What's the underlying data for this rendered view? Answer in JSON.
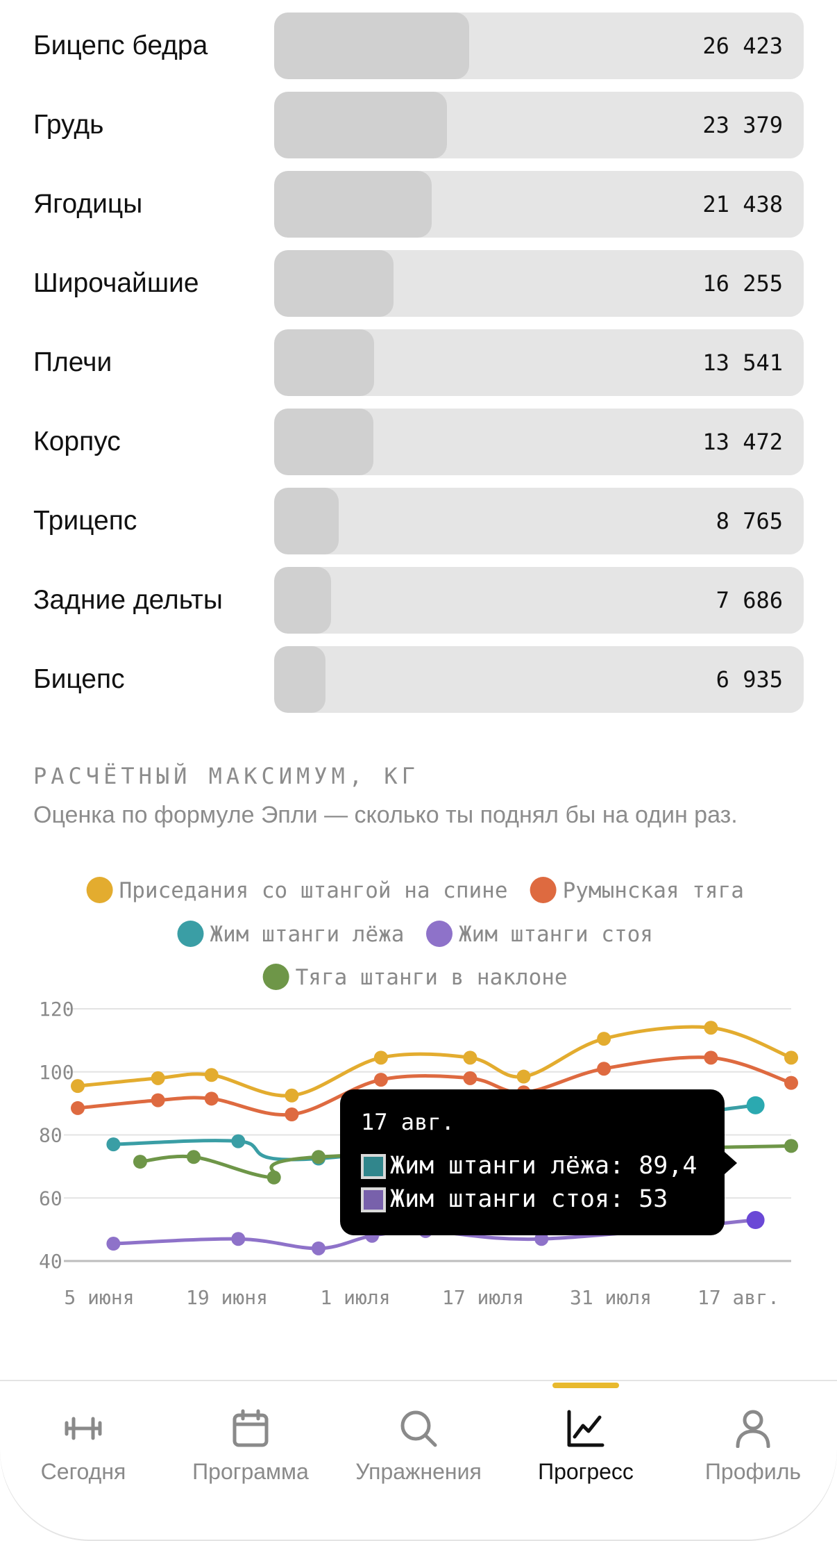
{
  "muscles": [
    {
      "name": "Бицепс бедра",
      "value": "26 423",
      "fraction": 0.368
    },
    {
      "name": "Грудь",
      "value": "23 379",
      "fraction": 0.326
    },
    {
      "name": "Ягодицы",
      "value": "21 438",
      "fraction": 0.298
    },
    {
      "name": "Широчайшие",
      "value": "16 255",
      "fraction": 0.226
    },
    {
      "name": "Плечи",
      "value": "13 541",
      "fraction": 0.189
    },
    {
      "name": "Корпус",
      "value": "13 472",
      "fraction": 0.188
    },
    {
      "name": "Трицепс",
      "value": "8 765",
      "fraction": 0.122
    },
    {
      "name": "Задние дельты",
      "value": "7 686",
      "fraction": 0.107
    },
    {
      "name": "Бицепс",
      "value": "6 935",
      "fraction": 0.097
    }
  ],
  "section": {
    "title": "РАСЧЁТНЫЙ МАКСИМУМ, КГ",
    "subtitle": "Оценка по формуле Эпли — сколько ты поднял бы на один раз."
  },
  "chart_data": {
    "type": "line",
    "ylim": [
      40,
      120
    ],
    "yticks": [
      40,
      60,
      80,
      100,
      120
    ],
    "xticks": [
      "5 июня",
      "19 июня",
      "1 июля",
      "17 июля",
      "31 июля",
      "17 авг."
    ],
    "grid": true,
    "legend_position": "top",
    "series": [
      {
        "name": "Приседания со штангой на спине",
        "color": "#e3ac2f",
        "points": [
          [
            "2024-06-05",
            95.5
          ],
          [
            "2024-06-14",
            98
          ],
          [
            "2024-06-20",
            99
          ],
          [
            "2024-06-29",
            92.5
          ],
          [
            "2024-07-09",
            104.5
          ],
          [
            "2024-07-19",
            104.5
          ],
          [
            "2024-07-25",
            98.5
          ],
          [
            "2024-08-03",
            110.5
          ],
          [
            "2024-08-15",
            114
          ],
          [
            "2024-08-24",
            104.5
          ]
        ]
      },
      {
        "name": "Румынская тяга",
        "color": "#de6a40",
        "points": [
          [
            "2024-06-05",
            88.5
          ],
          [
            "2024-06-14",
            91
          ],
          [
            "2024-06-20",
            91.5
          ],
          [
            "2024-06-29",
            86.5
          ],
          [
            "2024-07-09",
            97.5
          ],
          [
            "2024-07-19",
            98
          ],
          [
            "2024-07-25",
            93.5
          ],
          [
            "2024-08-03",
            101
          ],
          [
            "2024-08-15",
            104.5
          ],
          [
            "2024-08-24",
            96.5
          ]
        ]
      },
      {
        "name": "Жим штанги лёжа",
        "color": "#3a9ea5",
        "points": [
          [
            "2024-06-09",
            77
          ],
          [
            "2024-06-23",
            78
          ],
          [
            "2024-07-02",
            72.5
          ],
          [
            "2024-08-20",
            89.4
          ]
        ]
      },
      {
        "name": "Жим штанги стоя",
        "color": "#8e72c9",
        "points": [
          [
            "2024-06-09",
            45.5
          ],
          [
            "2024-06-23",
            47
          ],
          [
            "2024-07-02",
            44
          ],
          [
            "2024-07-08",
            48
          ],
          [
            "2024-07-14",
            49.5
          ],
          [
            "2024-07-27",
            47
          ],
          [
            "2024-08-20",
            53
          ]
        ]
      },
      {
        "name": "Тяга штанги в наклоне",
        "color": "#6e9648",
        "points": [
          [
            "2024-06-12",
            71.5
          ],
          [
            "2024-06-18",
            73
          ],
          [
            "2024-06-27",
            66.5
          ],
          [
            "2024-07-02",
            73
          ],
          [
            "2024-08-24",
            76.5
          ]
        ]
      }
    ]
  },
  "tooltip": {
    "date": "17 авг.",
    "rows": [
      {
        "label": "Жим штанги лёжа: 89,4",
        "color": "#3a9ea5"
      },
      {
        "label": "Жим штанги стоя: 53",
        "color": "#8e72c9"
      }
    ]
  },
  "tabs": [
    {
      "label": "Сегодня",
      "icon": "dumbbell-icon",
      "active": false
    },
    {
      "label": "Программа",
      "icon": "calendar-icon",
      "active": false
    },
    {
      "label": "Упражнения",
      "icon": "search-icon",
      "active": false
    },
    {
      "label": "Прогресс",
      "icon": "chart-icon",
      "active": true
    },
    {
      "label": "Профиль",
      "icon": "person-icon",
      "active": false
    }
  ]
}
